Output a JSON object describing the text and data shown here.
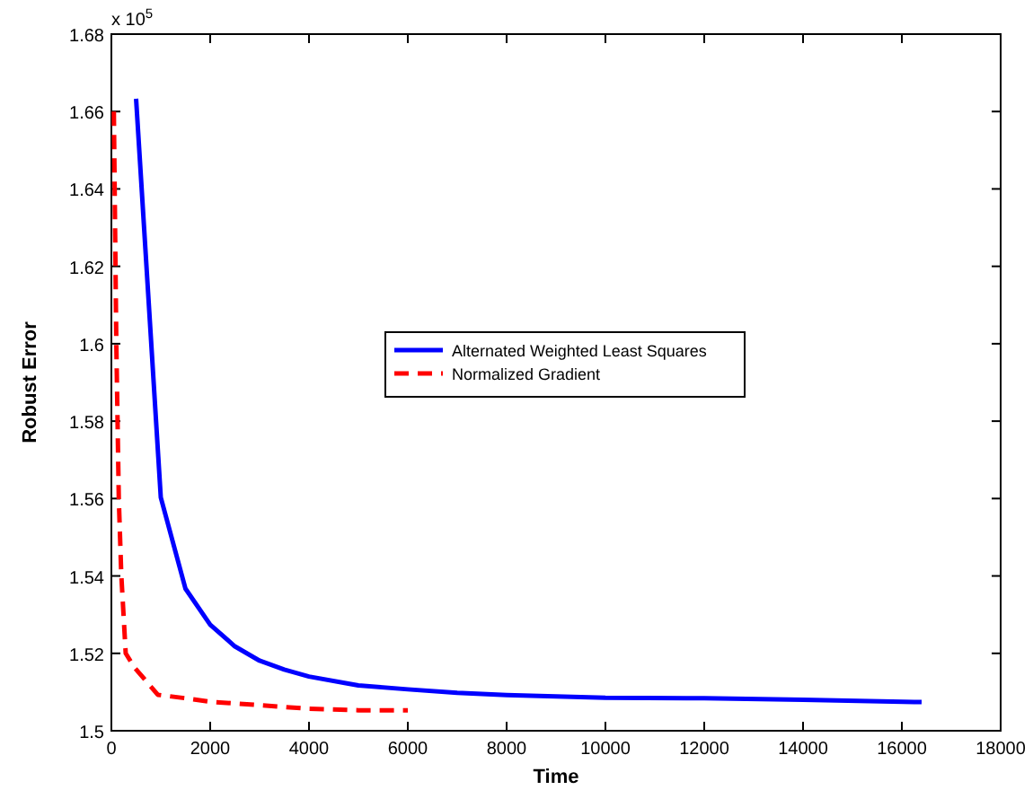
{
  "chart_data": {
    "type": "line",
    "xlabel": "Time",
    "ylabel": "Robust Error",
    "annotations": [
      "x 10$^{5}$"
    ],
    "xlim": [
      0,
      18000
    ],
    "xticks": [
      0,
      2000,
      4000,
      6000,
      8000,
      10000,
      12000,
      14000,
      16000,
      18000
    ],
    "ylim": [
      1.5,
      1.68
    ],
    "yticks": [
      1.5,
      1.52,
      1.54,
      1.56,
      1.58,
      1.6,
      1.62,
      1.64,
      1.66,
      1.68
    ],
    "grid": false,
    "legend": "center",
    "marker": "none",
    "series": [
      {
        "name": "Alternated Weighted Least Squares",
        "color": "#0000ff",
        "line_style": "solid",
        "x": [
          500,
          1000,
          1500,
          2000,
          2500,
          3000,
          3500,
          4000,
          5000,
          6000,
          7000,
          8000,
          10000,
          12000,
          14000,
          16400
        ],
        "values": [
          1.6633,
          1.5603,
          1.5367,
          1.5274,
          1.5218,
          1.5181,
          1.5158,
          1.514,
          1.5117,
          1.5107,
          1.5098,
          1.5092,
          1.5085,
          1.5084,
          1.508,
          1.5074
        ]
      },
      {
        "name": "Normalized Gradient",
        "color": "#ff0000",
        "line_style": "dashed",
        "x": [
          50,
          100,
          150,
          200,
          290,
          470,
          940,
          1500,
          2000,
          3000,
          4000,
          5000,
          6000
        ],
        "values": [
          1.66,
          1.6,
          1.56,
          1.5404,
          1.52,
          1.5163,
          1.5093,
          1.5084,
          1.5075,
          1.5066,
          1.5057,
          1.5053,
          1.5053
        ]
      }
    ]
  }
}
